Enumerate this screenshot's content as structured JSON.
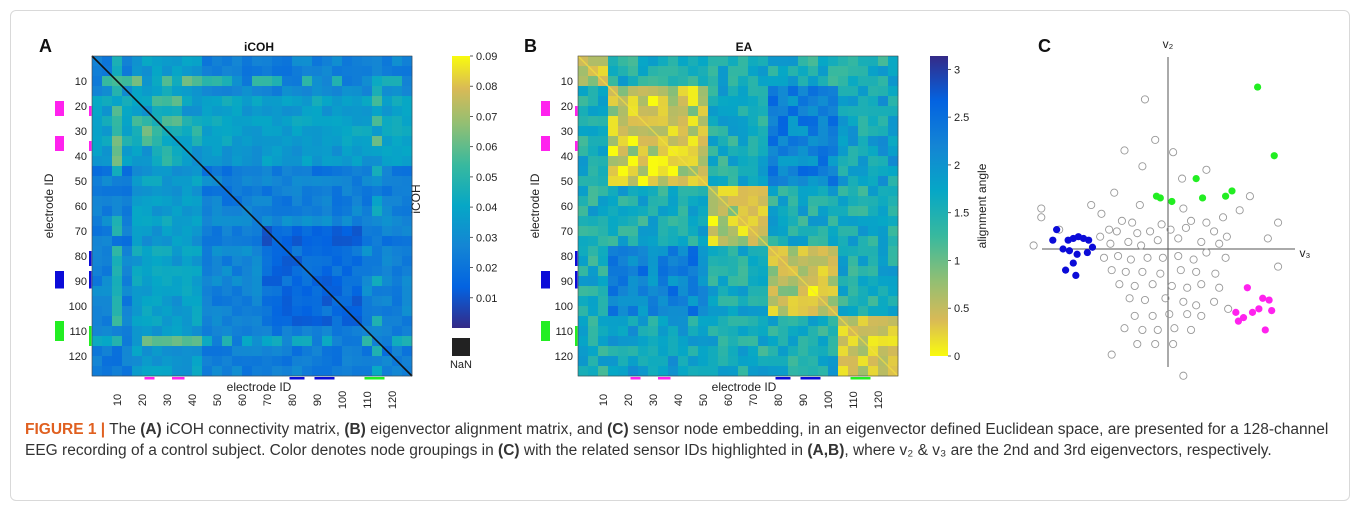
{
  "figure": {
    "caption_label": "FIGURE 1 |",
    "caption_parts": [
      {
        "text": " The ",
        "bold": false
      },
      {
        "text": "(A)",
        "bold": true
      },
      {
        "text": " iCOH connectivity matrix, ",
        "bold": false
      },
      {
        "text": "(B)",
        "bold": true
      },
      {
        "text": " eigenvector alignment matrix, and ",
        "bold": false
      },
      {
        "text": "(C)",
        "bold": true
      },
      {
        "text": " sensor node embedding, in an eigenvector defined Euclidean space, are presented for a 128-channel EEG recording of a control subject. Color denotes node groupings in ",
        "bold": false
      },
      {
        "text": "(C)",
        "bold": true
      },
      {
        "text": " with the related sensor IDs highlighted in ",
        "bold": false
      },
      {
        "text": "(A,B)",
        "bold": true
      },
      {
        "text": ", where v₂ & v₃ are the 2nd and 3rd eigenvectors, respectively.",
        "bold": false
      }
    ]
  },
  "colors": {
    "group_magenta": "#ff22ee",
    "group_blue": "#0b0bd8",
    "group_green": "#22ee22",
    "caption_accent": "#e06020",
    "nan": "#222222"
  },
  "chart_data": [
    {
      "type": "heatmap",
      "panel": "A",
      "title": "iCOH",
      "xlabel": "electrode ID",
      "ylabel": "electrode ID",
      "n": 128,
      "x_ticks": [
        "10",
        "20",
        "30",
        "40",
        "50",
        "60",
        "70",
        "80",
        "90",
        "100",
        "110",
        "120"
      ],
      "y_ticks": [
        "10",
        "20",
        "30",
        "40",
        "50",
        "60",
        "70",
        "80",
        "90",
        "100",
        "110",
        "120"
      ],
      "colorbar": {
        "label": "iCOH",
        "colormap": "parula",
        "range": [
          0,
          0.09
        ],
        "ticks": [
          "0.01",
          "0.02",
          "0.03",
          "0.04",
          "0.05",
          "0.06",
          "0.07",
          "0.08",
          "0.09"
        ],
        "nan_label": "NaN"
      },
      "diagonal": "NaN"
    },
    {
      "type": "heatmap",
      "panel": "B",
      "title": "EA",
      "xlabel": "electrode ID",
      "ylabel": "electrode ID",
      "n": 128,
      "x_ticks": [
        "10",
        "20",
        "30",
        "40",
        "50",
        "60",
        "70",
        "80",
        "90",
        "100",
        "110",
        "120"
      ],
      "y_ticks": [
        "10",
        "20",
        "30",
        "40",
        "50",
        "60",
        "70",
        "80",
        "90",
        "100",
        "110",
        "120"
      ],
      "colorbar": {
        "label": "alignment angle",
        "colormap": "parula_reversed",
        "range": [
          0,
          3.14
        ],
        "ticks": [
          "0",
          "0.5",
          "1",
          "1.5",
          "2",
          "2.5",
          "3"
        ]
      }
    },
    {
      "type": "scatter",
      "panel": "C",
      "xlabel": "v₃",
      "ylabel": "v₂",
      "xlim": [
        -1,
        1
      ],
      "ylim": [
        -1,
        1
      ],
      "series": [
        {
          "color": "#22ee22",
          "filled": true,
          "points": [
            [
              0.7,
              0.92
            ],
            [
              0.83,
              0.53
            ],
            [
              0.22,
              0.4
            ],
            [
              0.27,
              0.29
            ],
            [
              0.45,
              0.3
            ],
            [
              0.5,
              0.33
            ],
            [
              -0.06,
              0.29
            ],
            [
              -0.09,
              0.3
            ],
            [
              0.03,
              0.27
            ]
          ]
        },
        {
          "color": "#0b0bd8",
          "filled": true,
          "points": [
            [
              -0.9,
              0.05
            ],
            [
              -0.87,
              0.11
            ],
            [
              -0.82,
              0.0
            ],
            [
              -0.78,
              0.05
            ],
            [
              -0.74,
              0.06
            ],
            [
              -0.7,
              0.07
            ],
            [
              -0.66,
              0.06
            ],
            [
              -0.62,
              0.05
            ],
            [
              -0.77,
              -0.01
            ],
            [
              -0.71,
              -0.03
            ],
            [
              -0.74,
              -0.08
            ],
            [
              -0.8,
              -0.12
            ],
            [
              -0.72,
              -0.15
            ],
            [
              -0.63,
              -0.02
            ],
            [
              -0.59,
              0.01
            ]
          ]
        },
        {
          "color": "#ff22ee",
          "filled": true,
          "points": [
            [
              0.62,
              -0.22
            ],
            [
              0.66,
              -0.36
            ],
            [
              0.71,
              -0.34
            ],
            [
              0.74,
              -0.28
            ],
            [
              0.79,
              -0.29
            ],
            [
              0.81,
              -0.35
            ],
            [
              0.59,
              -0.39
            ],
            [
              0.55,
              -0.41
            ],
            [
              0.53,
              -0.36
            ],
            [
              0.76,
              -0.46
            ]
          ]
        },
        {
          "color": "#999999",
          "filled": false,
          "points": [
            [
              -0.18,
              0.85
            ],
            [
              -0.1,
              0.62
            ],
            [
              -0.34,
              0.56
            ],
            [
              0.04,
              0.55
            ],
            [
              -0.2,
              0.47
            ],
            [
              0.3,
              0.45
            ],
            [
              0.11,
              0.4
            ],
            [
              -0.42,
              0.32
            ],
            [
              -0.22,
              0.25
            ],
            [
              0.12,
              0.23
            ],
            [
              0.43,
              0.18
            ],
            [
              0.86,
              0.15
            ],
            [
              -0.6,
              0.25
            ],
            [
              -0.52,
              0.2
            ],
            [
              -0.99,
              0.23
            ],
            [
              -0.99,
              0.18
            ],
            [
              -0.85,
              0.11
            ],
            [
              -0.36,
              0.16
            ],
            [
              -0.28,
              0.15
            ],
            [
              -0.05,
              0.14
            ],
            [
              0.18,
              0.16
            ],
            [
              0.3,
              0.15
            ],
            [
              0.56,
              0.22
            ],
            [
              0.64,
              0.3
            ],
            [
              -0.46,
              0.11
            ],
            [
              -0.4,
              0.1
            ],
            [
              -0.24,
              0.09
            ],
            [
              -0.14,
              0.1
            ],
            [
              0.02,
              0.11
            ],
            [
              0.14,
              0.12
            ],
            [
              0.36,
              0.1
            ],
            [
              0.46,
              0.07
            ],
            [
              0.78,
              0.06
            ],
            [
              -0.53,
              0.07
            ],
            [
              -0.45,
              0.03
            ],
            [
              -0.31,
              0.04
            ],
            [
              -0.21,
              0.02
            ],
            [
              -0.08,
              0.05
            ],
            [
              0.08,
              0.06
            ],
            [
              0.26,
              0.04
            ],
            [
              0.4,
              0.03
            ],
            [
              -1.05,
              0.02
            ],
            [
              -0.5,
              -0.05
            ],
            [
              -0.39,
              -0.04
            ],
            [
              -0.29,
              -0.06
            ],
            [
              -0.16,
              -0.05
            ],
            [
              -0.04,
              -0.05
            ],
            [
              0.08,
              -0.04
            ],
            [
              0.2,
              -0.06
            ],
            [
              0.3,
              -0.02
            ],
            [
              0.45,
              -0.05
            ],
            [
              0.86,
              -0.1
            ],
            [
              -0.44,
              -0.12
            ],
            [
              -0.33,
              -0.13
            ],
            [
              -0.2,
              -0.13
            ],
            [
              -0.06,
              -0.14
            ],
            [
              0.1,
              -0.12
            ],
            [
              0.22,
              -0.13
            ],
            [
              0.37,
              -0.14
            ],
            [
              -0.38,
              -0.2
            ],
            [
              -0.26,
              -0.21
            ],
            [
              -0.12,
              -0.2
            ],
            [
              0.03,
              -0.21
            ],
            [
              0.15,
              -0.22
            ],
            [
              0.26,
              -0.2
            ],
            [
              0.4,
              -0.22
            ],
            [
              -0.3,
              -0.28
            ],
            [
              -0.18,
              -0.29
            ],
            [
              -0.02,
              -0.28
            ],
            [
              0.12,
              -0.3
            ],
            [
              0.22,
              -0.32
            ],
            [
              0.36,
              -0.3
            ],
            [
              0.47,
              -0.34
            ],
            [
              -0.26,
              -0.38
            ],
            [
              -0.12,
              -0.38
            ],
            [
              0.01,
              -0.37
            ],
            [
              0.15,
              -0.37
            ],
            [
              0.26,
              -0.38
            ],
            [
              -0.34,
              -0.45
            ],
            [
              -0.2,
              -0.46
            ],
            [
              -0.08,
              -0.46
            ],
            [
              0.05,
              -0.45
            ],
            [
              0.18,
              -0.46
            ],
            [
              -0.24,
              -0.54
            ],
            [
              -0.1,
              -0.54
            ],
            [
              0.04,
              -0.54
            ],
            [
              -0.44,
              -0.6
            ],
            [
              0.12,
              -0.72
            ]
          ]
        }
      ]
    }
  ]
}
